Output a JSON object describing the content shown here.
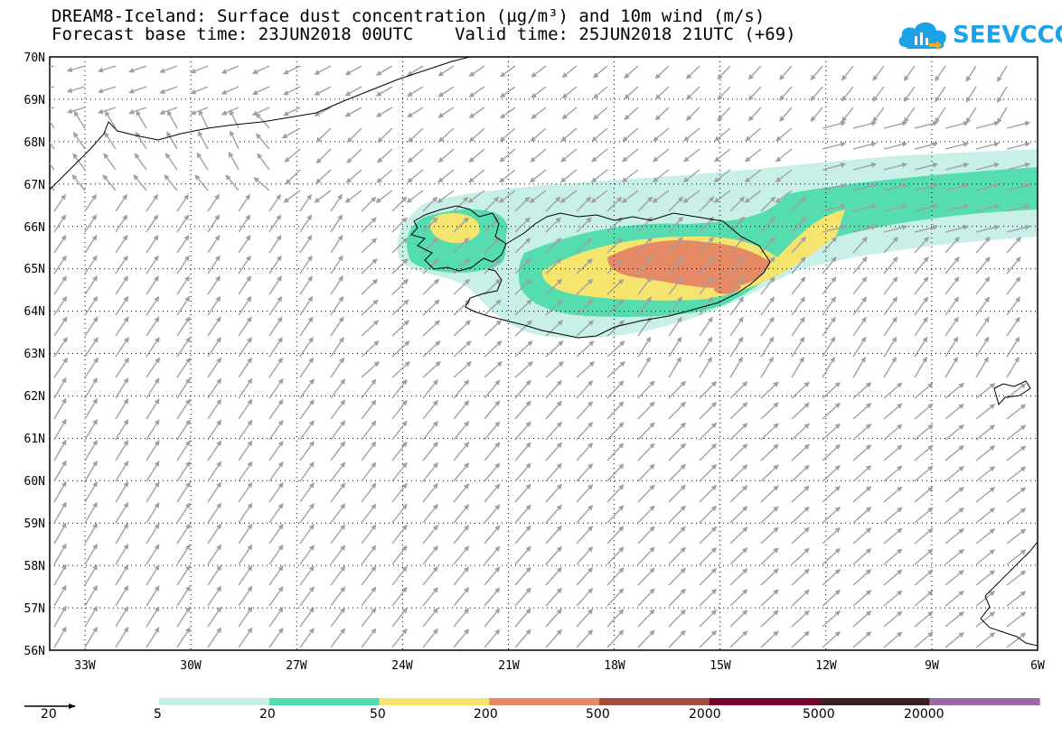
{
  "title": {
    "line1": "DREAM8-Iceland: Surface dust concentration (µg/m³) and 10m wind (m/s)",
    "line2": "Forecast base time: 23JUN2018 00UTC    Valid time: 25JUN2018 21UTC (+69)"
  },
  "logo": {
    "text": "SEEVCCC",
    "icon": "cloud-icon",
    "color": "#1aa3e8"
  },
  "map": {
    "lon_labels": [
      "33W",
      "30W",
      "27W",
      "24W",
      "21W",
      "18W",
      "15W",
      "12W",
      "9W",
      "6W"
    ],
    "lat_labels": [
      "70N",
      "69N",
      "68N",
      "67N",
      "66N",
      "65N",
      "64N",
      "63N",
      "62N",
      "61N",
      "60N",
      "59N",
      "58N",
      "57N",
      "56N"
    ],
    "lon_range": [
      -34,
      -6
    ],
    "lat_range": [
      56,
      70
    ],
    "gridlines": "dotted"
  },
  "colorbar": {
    "labels": [
      "5",
      "20",
      "50",
      "200",
      "500",
      "2000",
      "5000",
      "20000"
    ],
    "colors": [
      "#c8f0e8",
      "#55ddb0",
      "#f5e46e",
      "#e58a64",
      "#a84c40",
      "#7a0030",
      "#3a2020",
      "#9a6aa8"
    ]
  },
  "reference_vector": {
    "label": "20"
  }
}
